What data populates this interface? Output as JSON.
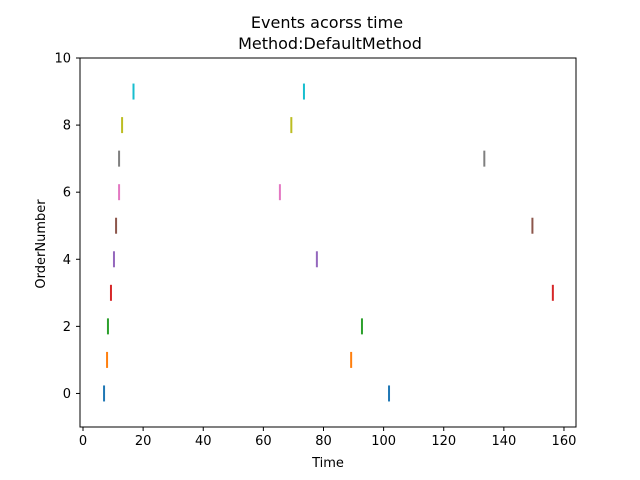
{
  "chart_data": {
    "type": "scatter",
    "title": "Events acorss time",
    "subtitle": "Method:DefaultMethod",
    "xlabel": "Time",
    "ylabel": "OrderNumber",
    "xlim": [
      -1,
      164
    ],
    "ylim": [
      -1,
      10
    ],
    "xticks": [
      0,
      20,
      40,
      60,
      80,
      100,
      120,
      140,
      160
    ],
    "yticks": [
      0,
      2,
      4,
      6,
      8,
      10
    ],
    "grid": false,
    "marker": "vertical-line",
    "colors": [
      "#1f77b4",
      "#ff7f0e",
      "#2ca02c",
      "#d62728",
      "#9467bd",
      "#8c564b",
      "#e377c2",
      "#7f7f7f",
      "#bcbd22",
      "#17becf"
    ],
    "series": [
      {
        "order": 0,
        "times": [
          7.0,
          101.8
        ]
      },
      {
        "order": 1,
        "times": [
          8.0,
          89.2
        ]
      },
      {
        "order": 2,
        "times": [
          8.3,
          92.8
        ]
      },
      {
        "order": 3,
        "times": [
          9.3,
          156.3
        ]
      },
      {
        "order": 4,
        "times": [
          10.3,
          77.8
        ]
      },
      {
        "order": 5,
        "times": [
          11.0,
          149.5
        ]
      },
      {
        "order": 6,
        "times": [
          12.0,
          65.5
        ]
      },
      {
        "order": 7,
        "times": [
          12.0,
          133.5
        ]
      },
      {
        "order": 8,
        "times": [
          13.0,
          69.3
        ]
      },
      {
        "order": 9,
        "times": [
          16.8,
          73.5
        ]
      }
    ]
  }
}
